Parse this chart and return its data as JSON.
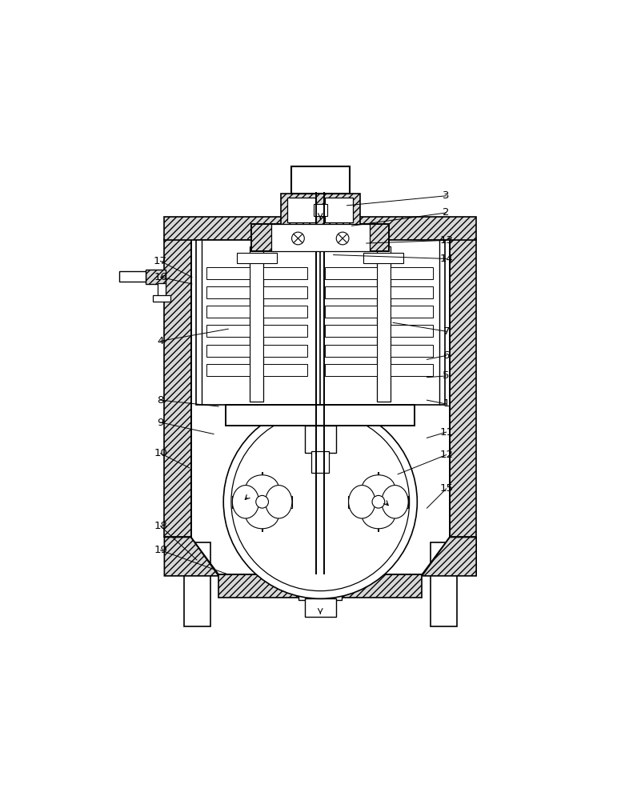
{
  "bg_color": "#ffffff",
  "line_color": "#000000",
  "fig_width": 7.81,
  "fig_height": 10.0,
  "annotations": [
    [
      3,
      0.76,
      0.93,
      0.555,
      0.91
    ],
    [
      2,
      0.76,
      0.895,
      0.565,
      0.868
    ],
    [
      13,
      0.76,
      0.838,
      0.595,
      0.832
    ],
    [
      14,
      0.76,
      0.8,
      0.527,
      0.808
    ],
    [
      17,
      0.17,
      0.795,
      0.235,
      0.762
    ],
    [
      16,
      0.17,
      0.762,
      0.235,
      0.748
    ],
    [
      4,
      0.17,
      0.63,
      0.31,
      0.655
    ],
    [
      7,
      0.76,
      0.65,
      0.65,
      0.668
    ],
    [
      6,
      0.76,
      0.6,
      0.72,
      0.592
    ],
    [
      5,
      0.76,
      0.558,
      0.72,
      0.555
    ],
    [
      1,
      0.76,
      0.5,
      0.72,
      0.508
    ],
    [
      8,
      0.17,
      0.508,
      0.29,
      0.495
    ],
    [
      9,
      0.17,
      0.462,
      0.28,
      0.438
    ],
    [
      10,
      0.17,
      0.398,
      0.23,
      0.368
    ],
    [
      11,
      0.76,
      0.442,
      0.72,
      0.43
    ],
    [
      12,
      0.76,
      0.395,
      0.66,
      0.355
    ],
    [
      15,
      0.76,
      0.325,
      0.72,
      0.285
    ],
    [
      18,
      0.17,
      0.248,
      0.245,
      0.178
    ],
    [
      19,
      0.17,
      0.198,
      0.31,
      0.148
    ]
  ]
}
